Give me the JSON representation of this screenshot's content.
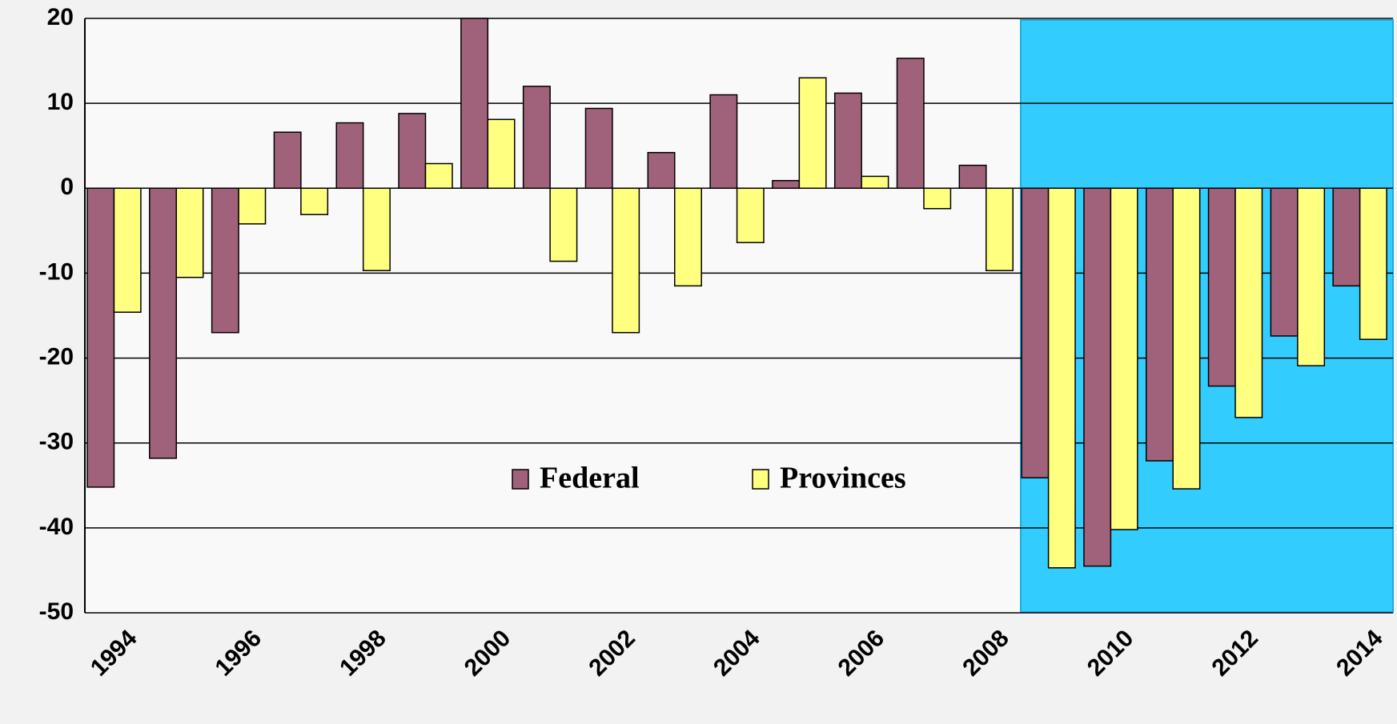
{
  "chart_data": {
    "type": "bar",
    "categories": [
      "1994",
      null,
      "1996",
      null,
      "1998",
      null,
      "2000",
      null,
      "2002",
      null,
      "2004",
      null,
      "2006",
      null,
      "2008",
      null,
      "2010",
      null,
      "2012",
      null,
      "2014"
    ],
    "series": [
      {
        "name": "Federal",
        "color": "#a0627a",
        "values": [
          -35.2,
          -31.8,
          -17,
          6.6,
          7.7,
          8.8,
          20,
          12,
          9.4,
          4.2,
          11,
          0.9,
          11.2,
          15.3,
          2.7,
          -34.1,
          -44.5,
          -32.1,
          -23.3,
          -17.4,
          -11.5
        ]
      },
      {
        "name": "Provinces",
        "color": "#ffff80",
        "values": [
          -14.6,
          -10.5,
          -4.2,
          -3.1,
          -9.7,
          2.9,
          8.1,
          -8.6,
          -17,
          -11.5,
          -6.4,
          13,
          1.4,
          -2.4,
          -9.7,
          -44.7,
          -40.2,
          -35.4,
          -27,
          -20.9,
          -17.8
        ]
      }
    ],
    "ylim": [
      -50,
      20
    ],
    "yticks": [
      -50,
      -40,
      -30,
      -20,
      -10,
      0,
      10,
      20
    ],
    "grid": true
  }
}
